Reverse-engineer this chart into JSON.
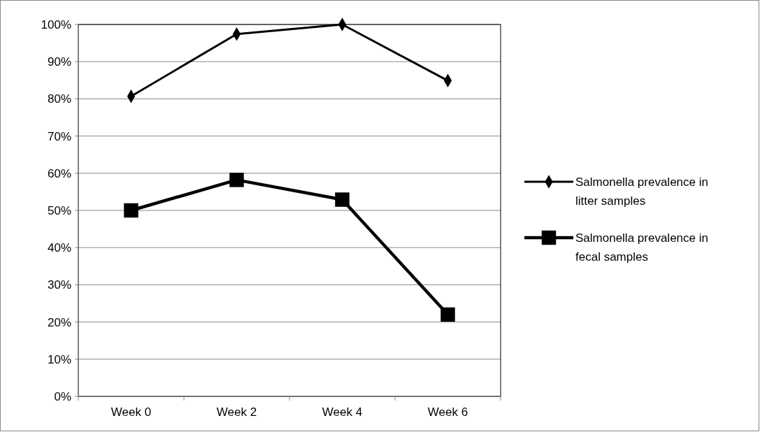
{
  "chart_data": {
    "type": "line",
    "categories": [
      "Week 0",
      "Week 2",
      "Week 4",
      "Week 6"
    ],
    "series": [
      {
        "name": "Salmonella prevalence in litter samples",
        "color": "#000000",
        "marker": "diamond",
        "values": [
          80.7,
          97.4,
          100,
          84.9
        ]
      },
      {
        "name": "Salmonella prevalence in fecal samples",
        "color": "#000000",
        "marker": "square",
        "values": [
          50,
          58.2,
          52.9,
          22
        ]
      }
    ],
    "ylim": [
      0,
      100
    ],
    "yticks": [
      {
        "value": 0,
        "label": "0%"
      },
      {
        "value": 10,
        "label": "10%"
      },
      {
        "value": 20,
        "label": "20%"
      },
      {
        "value": 30,
        "label": "30%"
      },
      {
        "value": 40,
        "label": "40%"
      },
      {
        "value": 50,
        "label": "50%"
      },
      {
        "value": 60,
        "label": "60%"
      },
      {
        "value": 70,
        "label": "70%"
      },
      {
        "value": 80,
        "label": "80%"
      },
      {
        "value": 90,
        "label": "90%"
      },
      {
        "value": 100,
        "label": "100%"
      }
    ],
    "grid": "y",
    "legend": "right",
    "line_style": "solid"
  }
}
